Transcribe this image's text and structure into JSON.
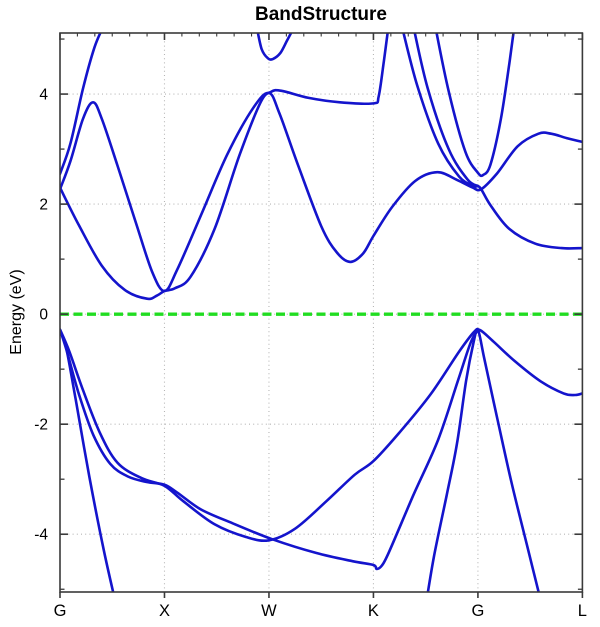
{
  "title": "BandStructure",
  "axis": {
    "ylabel": "Energy (eV)",
    "x_tick_labels": [
      "G",
      "X",
      "W",
      "K",
      "G",
      "L"
    ],
    "y_major_ticks": [
      -4,
      -2,
      0,
      2,
      4
    ],
    "y_minor_ticks": [
      -5,
      -3,
      -1,
      1,
      3,
      5
    ]
  },
  "colors": {
    "band": "#1414cc",
    "fermi": "#21dd21",
    "grid": "#b5b5b5",
    "axis_frame": "#3a3a3a",
    "text": "#000000",
    "background": "#ffffff"
  },
  "chart_data": {
    "type": "line",
    "title": "BandStructure",
    "ylabel": "Energy (eV)",
    "ylim": [
      -5.05,
      5.11
    ],
    "grid": true,
    "x_path": {
      "labels": [
        "G",
        "X",
        "W",
        "K",
        "G",
        "L"
      ],
      "positions": [
        0,
        1,
        2,
        3,
        4,
        5
      ]
    },
    "fermi_level": {
      "energy_eV": 0,
      "style": "dashed"
    },
    "series": [
      {
        "name": "conduction-band-1",
        "points": [
          [
            0,
            2.3
          ],
          [
            0.18,
            1.62
          ],
          [
            0.4,
            0.88
          ],
          [
            0.62,
            0.44
          ],
          [
            0.833,
            0.28
          ],
          [
            0.93,
            0.34
          ],
          [
            1.0,
            0.42
          ],
          [
            1.1,
            0.47
          ],
          [
            1.25,
            0.68
          ],
          [
            1.48,
            1.55
          ],
          [
            1.72,
            2.9
          ],
          [
            1.92,
            3.85
          ],
          [
            2.02,
            4.04
          ],
          [
            2.12,
            4.06
          ],
          [
            2.38,
            3.93
          ],
          [
            2.68,
            3.85
          ],
          [
            3.0,
            3.83
          ],
          [
            3.05,
            3.96
          ],
          [
            3.1,
            4.6
          ],
          [
            3.145,
            5.25
          ]
        ]
      },
      {
        "name": "conduction-band-2",
        "points": [
          [
            0,
            2.27
          ],
          [
            0.1,
            2.78
          ],
          [
            0.22,
            3.55
          ],
          [
            0.316,
            3.85
          ],
          [
            0.4,
            3.55
          ],
          [
            0.55,
            2.7
          ],
          [
            0.72,
            1.7
          ],
          [
            0.88,
            0.78
          ],
          [
            1.0,
            0.42
          ],
          [
            1.12,
            0.8
          ],
          [
            1.35,
            1.8
          ],
          [
            1.6,
            2.9
          ],
          [
            1.85,
            3.75
          ],
          [
            2.0,
            4.02
          ],
          [
            2.1,
            3.65
          ],
          [
            2.28,
            2.7
          ],
          [
            2.5,
            1.6
          ],
          [
            2.65,
            1.12
          ],
          [
            2.778,
            0.95
          ],
          [
            2.9,
            1.1
          ],
          [
            3.0,
            1.42
          ],
          [
            3.18,
            1.95
          ],
          [
            3.4,
            2.42
          ],
          [
            3.611,
            2.58
          ],
          [
            3.8,
            2.44
          ],
          [
            3.95,
            2.3
          ],
          [
            4.03,
            2.27
          ],
          [
            4.18,
            2.55
          ],
          [
            4.38,
            3.05
          ],
          [
            4.58,
            3.28
          ],
          [
            4.7,
            3.28
          ],
          [
            4.85,
            3.2
          ],
          [
            5.0,
            3.13
          ]
        ]
      },
      {
        "name": "conduction-band-3",
        "points": [
          [
            0,
            2.55
          ],
          [
            0.1,
            3.1
          ],
          [
            0.22,
            4.1
          ],
          [
            0.33,
            4.85
          ],
          [
            0.42,
            5.25
          ]
        ]
      },
      {
        "name": "conduction-band-W-dip",
        "points": [
          [
            1.88,
            5.25
          ],
          [
            1.93,
            4.82
          ],
          [
            1.99,
            4.65
          ],
          [
            2.04,
            4.64
          ],
          [
            2.11,
            4.75
          ],
          [
            2.18,
            5.0
          ],
          [
            2.25,
            5.25
          ]
        ]
      },
      {
        "name": "conduction-band-4",
        "points": [
          [
            3.27,
            5.25
          ],
          [
            3.42,
            4.15
          ],
          [
            3.62,
            3.1
          ],
          [
            3.82,
            2.5
          ],
          [
            3.96,
            2.33
          ],
          [
            4.02,
            2.3
          ],
          [
            4.12,
            1.98
          ],
          [
            4.3,
            1.55
          ],
          [
            4.55,
            1.28
          ],
          [
            4.8,
            1.2
          ],
          [
            5.0,
            1.2
          ]
        ]
      },
      {
        "name": "conduction-band-5",
        "points": [
          [
            3.38,
            5.25
          ],
          [
            3.52,
            4.1
          ],
          [
            3.72,
            3.0
          ],
          [
            3.9,
            2.45
          ],
          [
            4.0,
            2.33
          ]
        ]
      },
      {
        "name": "conduction-band-G-dip",
        "points": [
          [
            3.59,
            5.25
          ],
          [
            3.72,
            4.05
          ],
          [
            3.88,
            2.95
          ],
          [
            4.0,
            2.57
          ],
          [
            4.05,
            2.53
          ],
          [
            4.12,
            2.72
          ],
          [
            4.22,
            3.55
          ],
          [
            4.3,
            4.55
          ],
          [
            4.35,
            5.25
          ]
        ]
      },
      {
        "name": "valence-band-1",
        "points": [
          [
            0,
            -0.28
          ],
          [
            0.06,
            -0.62
          ],
          [
            0.15,
            -1.55
          ],
          [
            0.28,
            -2.95
          ],
          [
            0.42,
            -4.3
          ],
          [
            0.545,
            -5.35
          ]
        ]
      },
      {
        "name": "valence-band-2",
        "points": [
          [
            0,
            -0.28
          ],
          [
            0.07,
            -0.7
          ],
          [
            0.18,
            -1.45
          ],
          [
            0.32,
            -2.2
          ],
          [
            0.48,
            -2.72
          ],
          [
            0.65,
            -2.95
          ],
          [
            0.83,
            -3.05
          ],
          [
            1.0,
            -3.1
          ],
          [
            1.12,
            -3.24
          ],
          [
            1.35,
            -3.55
          ],
          [
            1.65,
            -3.8
          ],
          [
            2.03,
            -4.09
          ],
          [
            2.45,
            -4.34
          ],
          [
            2.8,
            -4.49
          ],
          [
            3.0,
            -4.56
          ],
          [
            3.03,
            -4.63
          ],
          [
            3.08,
            -4.57
          ],
          [
            3.15,
            -4.32
          ],
          [
            3.38,
            -3.3
          ],
          [
            3.62,
            -2.28
          ],
          [
            3.81,
            -1.2
          ],
          [
            3.93,
            -0.52
          ],
          [
            4.0,
            -0.29
          ]
        ]
      },
      {
        "name": "valence-band-3",
        "points": [
          [
            0,
            -0.28
          ],
          [
            0.09,
            -0.68
          ],
          [
            0.22,
            -1.38
          ],
          [
            0.38,
            -2.15
          ],
          [
            0.55,
            -2.7
          ],
          [
            0.78,
            -2.98
          ],
          [
            1.0,
            -3.12
          ],
          [
            1.18,
            -3.4
          ],
          [
            1.48,
            -3.82
          ],
          [
            1.78,
            -4.05
          ],
          [
            2.0,
            -4.11
          ],
          [
            2.25,
            -3.9
          ],
          [
            2.55,
            -3.4
          ],
          [
            2.82,
            -2.92
          ],
          [
            3.0,
            -2.67
          ],
          [
            3.25,
            -2.15
          ],
          [
            3.55,
            -1.45
          ],
          [
            3.82,
            -0.68
          ],
          [
            3.96,
            -0.33
          ],
          [
            4.02,
            -0.29
          ],
          [
            4.15,
            -0.5
          ],
          [
            4.35,
            -0.85
          ],
          [
            4.6,
            -1.22
          ],
          [
            4.82,
            -1.44
          ],
          [
            4.93,
            -1.47
          ],
          [
            5.0,
            -1.44
          ]
        ]
      },
      {
        "name": "valence-band-4",
        "points": [
          [
            3.496,
            -5.35
          ],
          [
            3.58,
            -4.4
          ],
          [
            3.7,
            -3.3
          ],
          [
            3.8,
            -2.35
          ],
          [
            3.888,
            -1.2
          ],
          [
            3.96,
            -0.5
          ],
          [
            4.0,
            -0.285
          ],
          [
            4.06,
            -0.8
          ],
          [
            4.18,
            -1.85
          ],
          [
            4.32,
            -3.05
          ],
          [
            4.47,
            -4.2
          ],
          [
            4.62,
            -5.35
          ]
        ]
      }
    ]
  }
}
